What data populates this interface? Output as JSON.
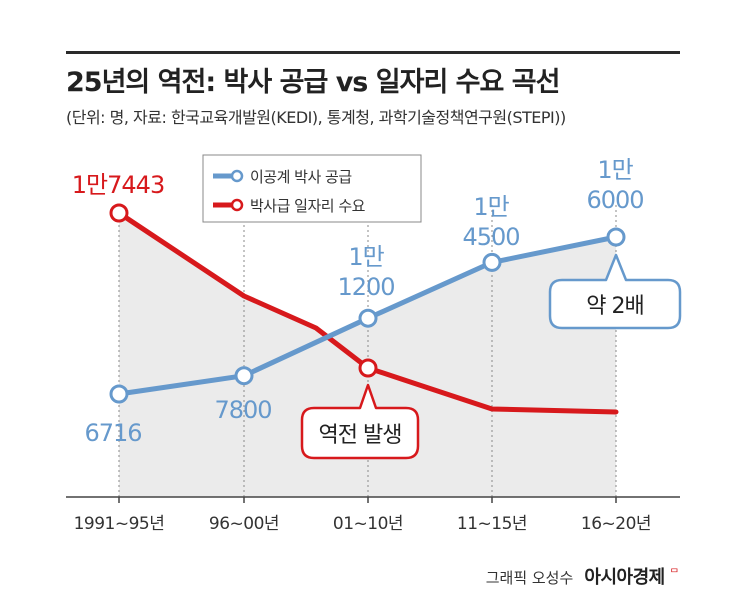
{
  "title": "25년의 역전: 박사 공급 vs 일자리 수요 곡선",
  "subtitle": "(단위: 명, 자료: 한국교육개발원(KEDI), 통계청, 과학기술정책연구원(STEPI))",
  "credit": {
    "author": "그래픽 오성수",
    "brand": "아시아경제",
    "brand_mark": "ᄆ"
  },
  "colors": {
    "supply": "#6699cc",
    "demand": "#d7191c",
    "shade": "#ebebeb",
    "text_dark": "#333333"
  },
  "chart_data": {
    "type": "line",
    "categories": [
      "1991~95년",
      "96~00년",
      "01~10년",
      "11~15년",
      "16~20년"
    ],
    "series": [
      {
        "name": "이공계 박사 공급",
        "color": "#6699cc",
        "values": [
          6716,
          7800,
          11200,
          14500,
          16000
        ],
        "labels": [
          [
            "6716"
          ],
          [
            "7800"
          ],
          [
            "1만",
            "1200"
          ],
          [
            "1만",
            "4500"
          ],
          [
            "1만",
            "6000"
          ]
        ]
      },
      {
        "name": "박사급 일자리 수요",
        "color": "#d7191c",
        "values": [
          17443,
          null,
          9300,
          null,
          null
        ],
        "labels": [
          [
            "1만7443"
          ],
          null,
          null,
          null,
          null
        ]
      }
    ],
    "annotations": [
      {
        "text": "역전 발생",
        "category": "01~10년",
        "series": "박사급 일자리 수요"
      },
      {
        "text": "약 2배",
        "category": "16~20년",
        "series": "이공계 박사 공급"
      }
    ],
    "legend": "top-center",
    "grid": "vertical dotted"
  }
}
